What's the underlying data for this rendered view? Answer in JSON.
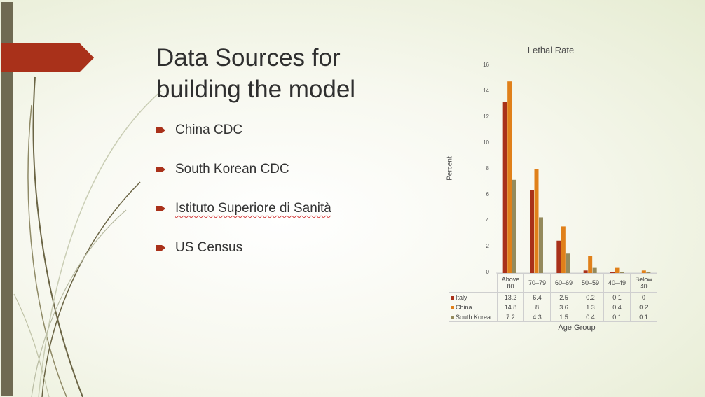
{
  "slide": {
    "title": "Data Sources for building the model",
    "bullets": [
      {
        "text": "China CDC",
        "spellcheck": false
      },
      {
        "text": "South Korean CDC",
        "spellcheck": false
      },
      {
        "text": "Istituto Superiore di Sanità",
        "spellcheck": true
      },
      {
        "text": "US Census",
        "spellcheck": false
      }
    ],
    "accent_color": "#a9311a",
    "sidebar_color": "#6f6a52"
  },
  "chart_data": {
    "type": "bar",
    "title": "Lethal Rate",
    "xlabel": "Age Group",
    "ylabel": "Percent",
    "ylim": [
      0,
      16
    ],
    "yticks": [
      0,
      2,
      4,
      6,
      8,
      10,
      12,
      14,
      16
    ],
    "categories": [
      "Above 80",
      "70–79",
      "60–69",
      "50–59",
      "40–49",
      "Below 40"
    ],
    "series": [
      {
        "name": "Italy",
        "color": "#a9311a",
        "values": [
          13.2,
          6.4,
          2.5,
          0.2,
          0.1,
          0
        ]
      },
      {
        "name": "China",
        "color": "#e0801a",
        "values": [
          14.8,
          8,
          3.6,
          1.3,
          0.4,
          0.2
        ]
      },
      {
        "name": "South Korea",
        "color": "#948a5c",
        "values": [
          7.2,
          4.3,
          1.5,
          0.4,
          0.1,
          0.1
        ]
      }
    ],
    "grid": false,
    "data_table": true
  }
}
